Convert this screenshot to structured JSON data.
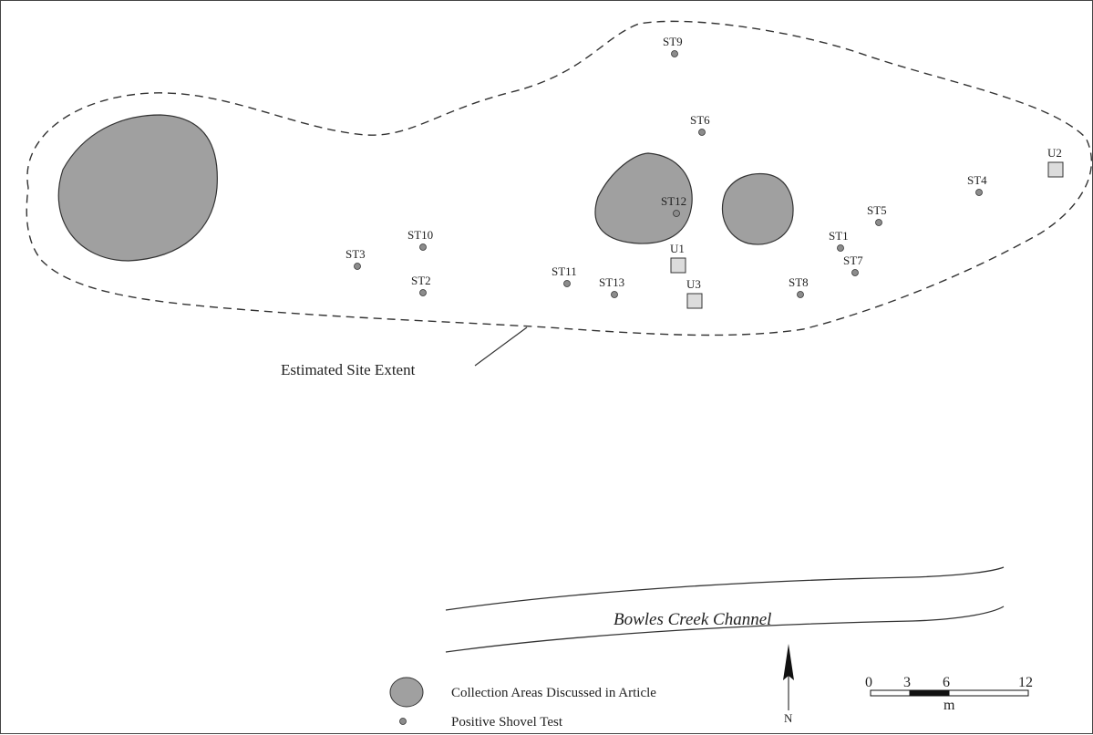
{
  "colors": {
    "collection_area_fill": "#a0a0a0",
    "shovel_test_fill": "#8c8c8c",
    "unit_fill": "#dcdcdc",
    "line": "#333333"
  },
  "shovel_tests": [
    {
      "id": "ST1",
      "label": "ST1"
    },
    {
      "id": "ST2",
      "label": "ST2"
    },
    {
      "id": "ST3",
      "label": "ST3"
    },
    {
      "id": "ST4",
      "label": "ST4"
    },
    {
      "id": "ST5",
      "label": "ST5"
    },
    {
      "id": "ST6",
      "label": "ST6"
    },
    {
      "id": "ST7",
      "label": "ST7"
    },
    {
      "id": "ST8",
      "label": "ST8"
    },
    {
      "id": "ST9",
      "label": "ST9"
    },
    {
      "id": "ST10",
      "label": "ST10"
    },
    {
      "id": "ST11",
      "label": "ST11"
    },
    {
      "id": "ST12",
      "label": "ST12"
    },
    {
      "id": "ST13",
      "label": "ST13"
    }
  ],
  "units": [
    {
      "id": "U1",
      "label": "U1"
    },
    {
      "id": "U2",
      "label": "U2"
    },
    {
      "id": "U3",
      "label": "U3"
    }
  ],
  "site_extent_label": "Estimated Site Extent",
  "creek_label": "Bowles Creek Channel",
  "legend": {
    "collection_areas": "Collection Areas Discussed in Article",
    "shovel_test": "Positive Shovel Test"
  },
  "north_arrow": {
    "label": "N"
  },
  "scale_bar": {
    "ticks": [
      "0",
      "3",
      "6",
      "12"
    ],
    "unit": "m"
  }
}
